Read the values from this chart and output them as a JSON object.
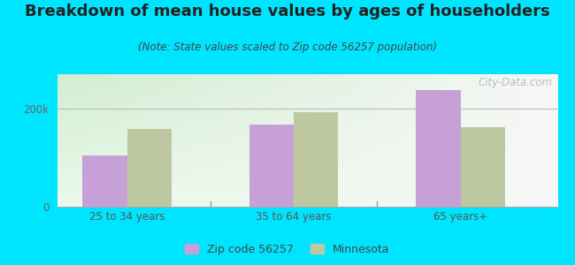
{
  "title": "Breakdown of mean house values by ages of householders",
  "subtitle": "(Note: State values scaled to Zip code 56257 population)",
  "categories": [
    "25 to 34 years",
    "35 to 64 years",
    "65 years+"
  ],
  "zip_values": [
    105000,
    168000,
    237000
  ],
  "state_values": [
    158000,
    193000,
    162000
  ],
  "zip_color": "#c8a0d8",
  "state_color": "#bec8a0",
  "background_outer": "#00e5ff",
  "ylim": [
    0,
    270000
  ],
  "yticks": [
    0,
    200000
  ],
  "ytick_labels": [
    "0",
    "200k"
  ],
  "legend_labels": [
    "Zip code 56257",
    "Minnesota"
  ],
  "watermark": "City-Data.com",
  "bar_width": 0.32,
  "title_fontsize": 13,
  "subtitle_fontsize": 8.5,
  "tick_fontsize": 8.5
}
